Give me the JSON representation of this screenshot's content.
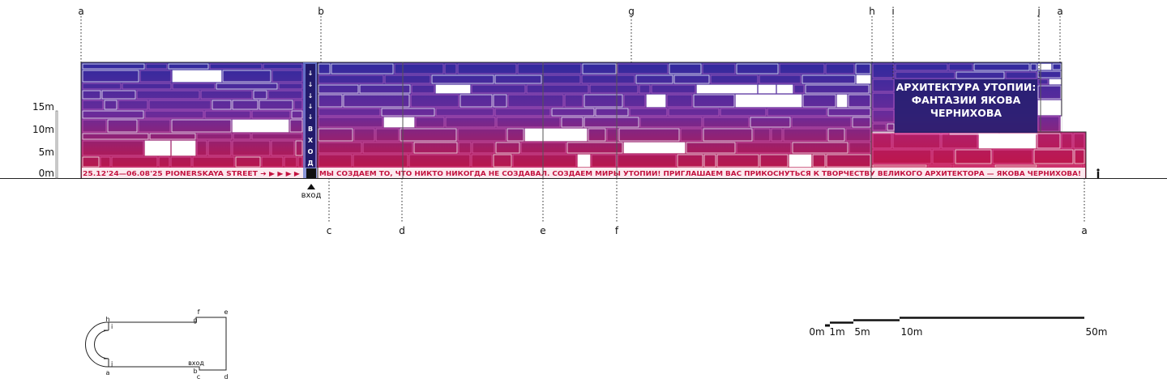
{
  "facade": {
    "title_lines": [
      "АРХИТЕКТУРА УТОПИИ:",
      "ФАНТАЗИИ ЯКОВА",
      "ЧЕРНИХОВА"
    ],
    "banner_left": "25.12'24—06.08'25  PIONERSKAYA STREET ➜ ▶ ▶ ▶ ▶",
    "banner_right": "МЫ СОЗДАЕМ ТО, ЧТО НИКТО НИКОГДА НЕ СОЗДАВАЛ. СОЗДАЕМ МИРЫ УТОПИИ!   ПРИГЛАШАЕМ ВАС ПРИКОСНУТЬСЯ К ТВОРЧЕСТВУ ВЕЛИКОГО АРХИТЕКТОРА — ЯКОВА ЧЕРНИХОВА!",
    "entrance_column_letters": [
      "В",
      "Х",
      "О",
      "Д"
    ],
    "entrance_label": "вход",
    "colors": {
      "top": "#3326a0",
      "mid": "#6a2a9a",
      "bottom": "#c3123f",
      "text_red": "#c3123f"
    }
  },
  "section_marks_top": [
    "a",
    "b",
    "g",
    "h",
    "i",
    "j",
    "a"
  ],
  "section_marks_bottom": [
    "c",
    "d",
    "e",
    "f",
    "a"
  ],
  "height_scale": [
    "15m",
    "10m",
    "5m",
    "0m"
  ],
  "plan": {
    "labels": [
      "h",
      "i",
      "f",
      "e",
      "g",
      "вход",
      "j",
      "a",
      "b",
      "c",
      "d"
    ]
  },
  "scale_bar": [
    "0m",
    "1m",
    "5m",
    "10m",
    "50m"
  ]
}
